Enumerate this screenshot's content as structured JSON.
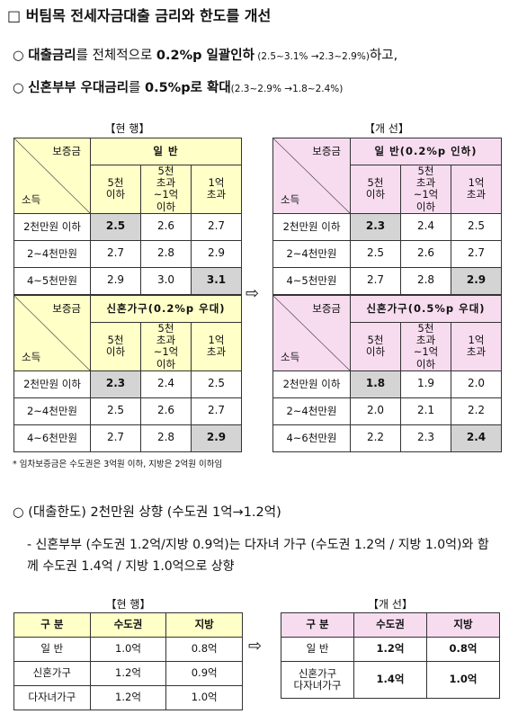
{
  "title": "□ 버팀목 전세자금대출 금리와 한도를 개선",
  "bullets": [
    [
      {
        "text": "○  ",
        "bold": false,
        "small": false
      },
      {
        "text": "대출금리",
        "bold": true,
        "small": false
      },
      {
        "text": "를 전체적으로 ",
        "bold": false,
        "small": false
      },
      {
        "text": "0.2%p 일괄인하",
        "bold": true,
        "small": false
      },
      {
        "text": " (2.5~3.1% →2.3~2.9%)",
        "bold": false,
        "small": true
      },
      {
        "text": "하고,",
        "bold": false,
        "small": false
      }
    ],
    [
      {
        "text": "○  ",
        "bold": false,
        "small": false
      },
      {
        "text": "신혼부부 우대금리",
        "bold": true,
        "small": false
      },
      {
        "text": "를 ",
        "bold": false,
        "small": false
      },
      {
        "text": "0.5%p로 확대",
        "bold": true,
        "small": false
      },
      {
        "text": "(2.3~2.9% →1.8~2.4%)",
        "bold": false,
        "small": true
      }
    ]
  ],
  "rate_tables": {
    "current": {
      "label": "【현 행】",
      "tables": [
        {
          "corner_top": "보증금",
          "corner_bottom": "소득",
          "title": "일 반",
          "columns": [
            "5천\n이하",
            "5천\n초과\n~1억\n이하",
            "1억\n초과"
          ],
          "rows": [
            {
              "label": "2천만원 이하",
              "values": [
                "2.5",
                "2.6",
                "2.7"
              ]
            },
            {
              "label": "2~4천만원",
              "values": [
                "2.7",
                "2.8",
                "2.9"
              ]
            },
            {
              "label": "4~5천만원",
              "values": [
                "2.9",
                "3.0",
                "3.1"
              ]
            }
          ]
        },
        {
          "corner_top": "보증금",
          "corner_bottom": "소득",
          "title": "신혼가구(0.2%p 우대)",
          "columns": [
            "5천\n이하",
            "5천\n초과\n~1억\n이하",
            "1억\n초과"
          ],
          "rows": [
            {
              "label": "2천만원 이하",
              "values": [
                "2.3",
                "2.4",
                "2.5"
              ]
            },
            {
              "label": "2~4천만원",
              "values": [
                "2.5",
                "2.6",
                "2.7"
              ]
            },
            {
              "label": "4~6천만원",
              "values": [
                "2.7",
                "2.8",
                "2.9"
              ]
            }
          ]
        }
      ]
    },
    "improved": {
      "label": "【개 선】",
      "tables": [
        {
          "corner_top": "보증금",
          "corner_bottom": "소득",
          "title": "일 반(0.2%p 인하)",
          "columns": [
            "5천\n이하",
            "5천\n초과\n~1억\n이하",
            "1억\n초과"
          ],
          "rows": [
            {
              "label": "2천만원 이하",
              "values": [
                "2.3",
                "2.4",
                "2.5"
              ]
            },
            {
              "label": "2~4천만원",
              "values": [
                "2.5",
                "2.6",
                "2.7"
              ]
            },
            {
              "label": "4~5천만원",
              "values": [
                "2.7",
                "2.8",
                "2.9"
              ]
            }
          ]
        },
        {
          "corner_top": "보증금",
          "corner_bottom": "소득",
          "title": "신혼가구(0.5%p 우대)",
          "columns": [
            "5천\n이하",
            "5천\n초과\n~1억\n이하",
            "1억\n초과"
          ],
          "rows": [
            {
              "label": "2천만원 이하",
              "values": [
                "1.8",
                "1.9",
                "2.0"
              ]
            },
            {
              "label": "2~4천만원",
              "values": [
                "2.0",
                "2.1",
                "2.2"
              ]
            },
            {
              "label": "4~6천만원",
              "values": [
                "2.2",
                "2.3",
                "2.4"
              ]
            }
          ]
        }
      ]
    }
  },
  "footnote": "* 임차보증금은 수도권은 3억원 이하, 지방은 2억원 이하임",
  "section2": [
    {
      "text": "○  ",
      "bold": false,
      "small": false
    },
    {
      "text": "(대출한도) 2천만원 상향",
      "bold": true,
      "small": false
    },
    {
      "text": " (수도권 1억→1.2억)",
      "bold": false,
      "small": true
    }
  ],
  "paragraph": [
    {
      "text": "- 신혼부부 ",
      "bold": false,
      "small": false
    },
    {
      "text": "(수도권 1.2억/지방 0.9억)",
      "bold": false,
      "small": true
    },
    {
      "text": "는 다자녀 가구 ",
      "bold": false,
      "small": false
    },
    {
      "text": "(수도권 1.2억 / 지방 1.0억)",
      "bold": false,
      "small": true
    },
    {
      "text": "와 함께 ",
      "bold": false,
      "small": false
    },
    {
      "text": "수도권 1.4억 / 지방 1.0억",
      "bold": true,
      "small": false
    },
    {
      "text": "으로 상향",
      "bold": false,
      "small": false
    }
  ],
  "limit_tables": {
    "current": {
      "label": "【현 행】",
      "header": [
        "구 분",
        "수도권",
        "지방"
      ],
      "rows": [
        [
          "일 반",
          "1.0억",
          "0.8억"
        ],
        [
          "신혼가구",
          "1.2억",
          "0.9억"
        ],
        [
          "다자녀가구",
          "1.2억",
          "1.0억"
        ]
      ]
    },
    "improved": {
      "label": "【개 선】",
      "header": [
        "구 분",
        "수도권",
        "지방"
      ],
      "rows": [
        [
          "일 반",
          "1.2억",
          "0.8억"
        ],
        [
          "신혼가구\n다자녀가구",
          "1.4억",
          "1.0억"
        ]
      ]
    }
  }
}
